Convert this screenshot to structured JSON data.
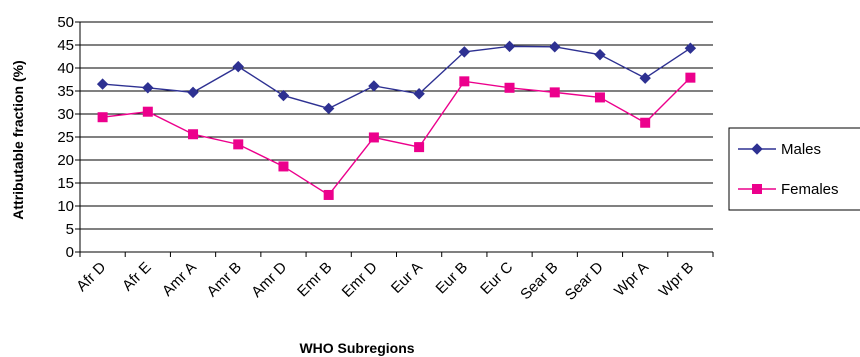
{
  "chart_data": {
    "type": "line",
    "xlabel": "WHO Subregions",
    "ylabel": "Attributable fraction (%)",
    "categories": [
      "Afr D",
      "Afr E",
      "Amr A",
      "Amr B",
      "Amr D",
      "Emr B",
      "Emr D",
      "Eur A",
      "Eur B",
      "Eur C",
      "Sear B",
      "Sear D",
      "Wpr A",
      "Wpr B"
    ],
    "yticks": [
      "0",
      "5",
      "10",
      "15",
      "20",
      "25",
      "30",
      "35",
      "40",
      "45",
      "50"
    ],
    "ylim": [
      0,
      50
    ],
    "grid": true,
    "legend_position": "right",
    "series": [
      {
        "name": "Males",
        "color": "#2e3192",
        "marker": "diamond",
        "values": [
          36.5,
          35.7,
          34.7,
          40.3,
          34.0,
          31.2,
          36.1,
          34.4,
          43.5,
          44.7,
          44.6,
          42.9,
          37.8,
          44.3
        ]
      },
      {
        "name": "Females",
        "color": "#ec008c",
        "marker": "square",
        "values": [
          29.3,
          30.5,
          25.6,
          23.4,
          18.6,
          12.4,
          24.9,
          22.8,
          37.1,
          35.7,
          34.7,
          33.6,
          28.1,
          37.9
        ]
      }
    ]
  }
}
